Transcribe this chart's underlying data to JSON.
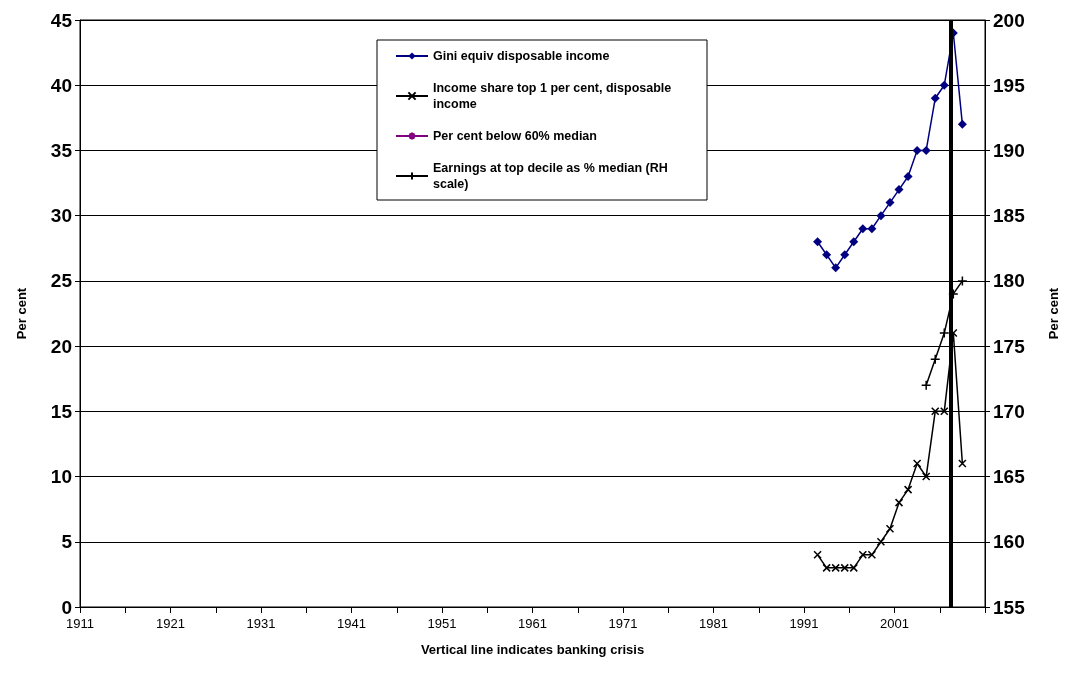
{
  "chart_data": {
    "type": "line",
    "xlabel": "Vertical line indicates banking crisis",
    "ylabel": "Per cent",
    "y2label": "Per cent",
    "xlim": [
      1911,
      2011
    ],
    "xticks": [
      1911,
      {
        "value": 1916,
        "label": null
      },
      1921,
      {
        "value": 1926,
        "label": null
      },
      1931,
      {
        "value": 1936,
        "label": null
      },
      1941,
      {
        "value": 1946,
        "label": null
      },
      1951,
      {
        "value": 1956,
        "label": null
      },
      1961,
      {
        "value": 1966,
        "label": null
      },
      1971,
      {
        "value": 1976,
        "label": null
      },
      1981,
      {
        "value": 1986,
        "label": null
      },
      1991,
      {
        "value": 1996,
        "label": null
      },
      2001,
      {
        "value": 2006,
        "label": null
      },
      {
        "value": 2011,
        "label": null
      }
    ],
    "ylim": [
      0,
      45
    ],
    "yticks": [
      0,
      5,
      10,
      15,
      20,
      25,
      30,
      35,
      40,
      45
    ],
    "y2lim": [
      155,
      200
    ],
    "y2ticks": [
      155,
      160,
      165,
      170,
      175,
      180,
      185,
      190,
      195,
      200
    ],
    "grid": "y",
    "legend": "top",
    "series": [
      {
        "name": "Gini equiv disposable income",
        "color": "#000080",
        "marker": "diamond",
        "x": [
          1992.5,
          1993.5,
          1994.5,
          1995.5,
          1996.5,
          1997.5,
          1998.5,
          1999.5,
          2000.5,
          2001.5,
          2002.5,
          2003.5,
          2004.5,
          2005.5,
          2006.5,
          2007.5,
          2008.5
        ],
        "values": [
          28,
          27,
          26,
          27,
          28,
          29,
          29,
          30,
          31,
          32,
          33,
          35,
          35,
          39,
          40,
          44,
          37
        ]
      },
      {
        "name": "Income share top 1 per cent, disposable income",
        "color": "#000000",
        "marker": "x",
        "x": [
          1992.5,
          1993.5,
          1994.5,
          1995.5,
          1996.5,
          1997.5,
          1998.5,
          1999.5,
          2000.5,
          2001.5,
          2002.5,
          2003.5,
          2004.5,
          2005.5,
          2006.5,
          2007.5,
          2008.5
        ],
        "values": [
          4,
          3,
          3,
          3,
          3,
          4,
          4,
          5,
          6,
          8,
          9,
          11,
          10,
          15,
          15,
          21,
          11
        ]
      },
      {
        "name": "Per cent below 60% median",
        "color": "#800080",
        "marker": "star"
      },
      {
        "name": "Earnings at top decile as % median (RH scale)",
        "color": "#000000",
        "marker": "cross",
        "axis": "y2",
        "x": [
          2004.5,
          2005.5,
          2006.5,
          2007.5,
          2008.5
        ],
        "values": [
          172,
          174,
          176,
          179,
          180
        ]
      }
    ],
    "ref_lines": [
      {
        "axis": "x",
        "value": 2007.2,
        "color": "#000000"
      }
    ]
  }
}
